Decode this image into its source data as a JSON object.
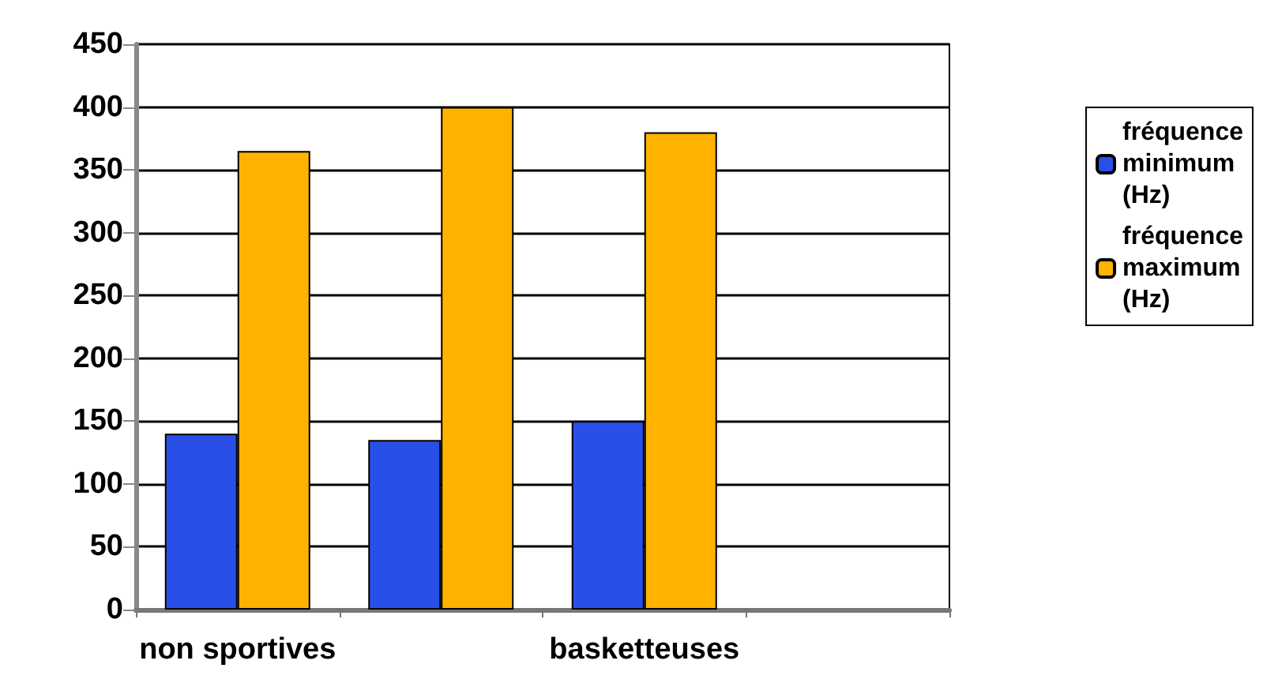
{
  "chart_data": {
    "type": "bar",
    "categories": [
      "non sportives",
      null,
      "basketteuses",
      null
    ],
    "series": [
      {
        "name": "fréquence minimum (Hz)",
        "color": "#2a4fe8",
        "values": [
          140,
          135,
          150,
          null
        ]
      },
      {
        "name": "fréquence maximum (Hz)",
        "color": "#ffb300",
        "values": [
          365,
          400,
          380,
          null
        ]
      }
    ],
    "ylim": [
      0,
      450
    ],
    "yticks": [
      0,
      50,
      100,
      150,
      200,
      250,
      300,
      350,
      400,
      450
    ],
    "grid": "y",
    "legend": "right"
  }
}
